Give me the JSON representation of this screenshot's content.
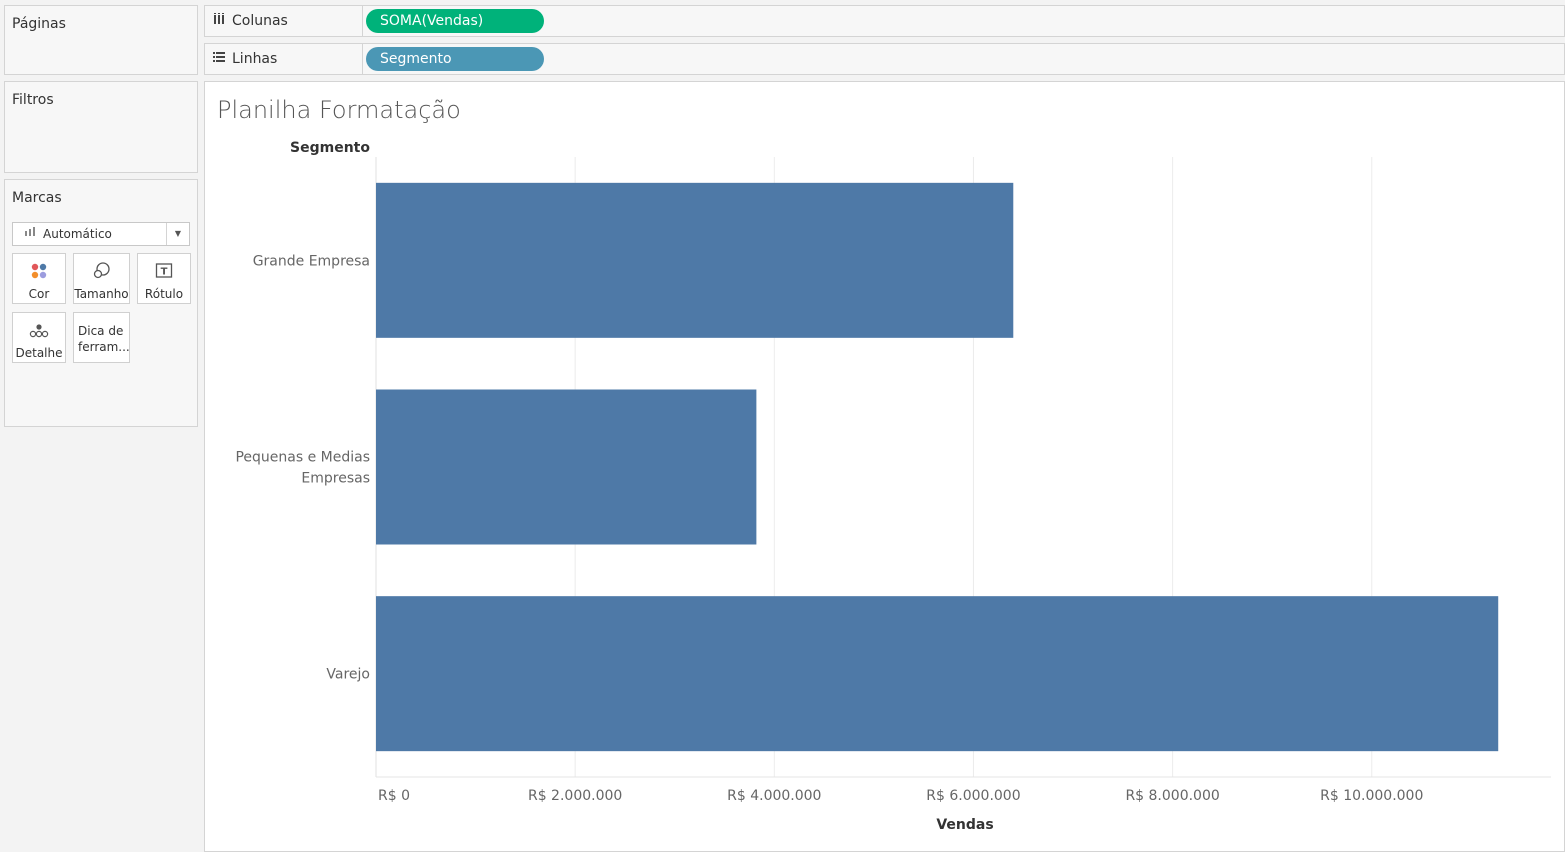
{
  "panels": {
    "paginas": "Páginas",
    "filtros": "Filtros",
    "marcas": "Marcas"
  },
  "shelves": {
    "colunas": {
      "label": "Colunas",
      "pill": "SOMA(Vendas)"
    },
    "linhas": {
      "label": "Linhas",
      "pill": "Segmento"
    }
  },
  "marks": {
    "type": "Automático",
    "buttons": {
      "cor": "Cor",
      "tamanho": "Tamanho",
      "rotulo": "Rótulo",
      "detalhe": "Detalhe",
      "dica_line1": "Dica de",
      "dica_line2": "ferram..."
    }
  },
  "colors": {
    "bar": "#4e79a7",
    "pill_columns": "#00b27a",
    "pill_rows": "#4b97b5"
  },
  "chart_data": {
    "type": "bar",
    "orientation": "horizontal",
    "title": "Planilha Formatação",
    "row_header": "Segmento",
    "xlabel": "Vendas",
    "categories": [
      "Grande Empresa",
      "Pequenas e Medias Empresas",
      "Varejo"
    ],
    "category_lines": [
      [
        "Grande Empresa"
      ],
      [
        "Pequenas e Medias",
        "Empresas"
      ],
      [
        "Varejo"
      ]
    ],
    "values": [
      6400000,
      3820000,
      11270000
    ],
    "xlim": [
      0,
      11800000
    ],
    "xticks": [
      0,
      2000000,
      4000000,
      6000000,
      8000000,
      10000000
    ],
    "xtick_labels": [
      "R$ 0",
      "R$ 2.000.000",
      "R$ 4.000.000",
      "R$ 6.000.000",
      "R$ 8.000.000",
      "R$ 10.000.000"
    ],
    "grid": true
  }
}
